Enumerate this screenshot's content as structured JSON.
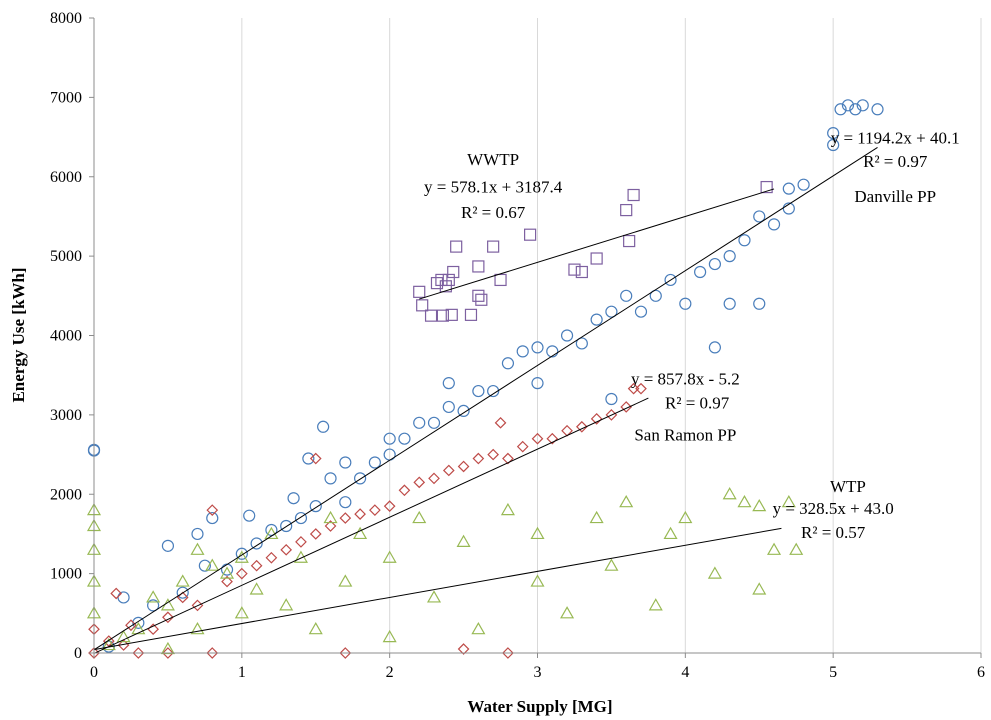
{
  "chart_data": {
    "type": "scatter",
    "title": "",
    "xlabel": "Water Supply [MG]",
    "ylabel": "Energy Use [kWh]",
    "xlim": [
      0,
      6
    ],
    "ylim": [
      0,
      8000
    ],
    "x_ticks": [
      0,
      1,
      2,
      3,
      4,
      5,
      6
    ],
    "y_ticks": [
      0,
      1000,
      2000,
      3000,
      4000,
      5000,
      6000,
      7000,
      8000
    ],
    "grid": "vertical",
    "legend": "none",
    "series": [
      {
        "name": "Danville PP",
        "marker": "circle",
        "color": "#4a7ebb",
        "slope": 1194.2,
        "intercept": 40.1,
        "fit_x": [
          0,
          5.3
        ],
        "equation": "y = 1194.2x + 40.1",
        "r2": "R² = 0.97",
        "points": [
          [
            0,
            2550
          ],
          [
            0,
            2560
          ],
          [
            0.1,
            80
          ],
          [
            0.2,
            700
          ],
          [
            0.3,
            380
          ],
          [
            0.4,
            600
          ],
          [
            0.5,
            1350
          ],
          [
            0.6,
            760
          ],
          [
            0.7,
            1500
          ],
          [
            0.75,
            1100
          ],
          [
            0.8,
            1700
          ],
          [
            0.9,
            1050
          ],
          [
            1.0,
            1250
          ],
          [
            1.05,
            1730
          ],
          [
            1.1,
            1380
          ],
          [
            1.2,
            1550
          ],
          [
            1.3,
            1600
          ],
          [
            1.35,
            1950
          ],
          [
            1.4,
            1700
          ],
          [
            1.45,
            2450
          ],
          [
            1.5,
            1850
          ],
          [
            1.55,
            2850
          ],
          [
            1.6,
            2200
          ],
          [
            1.7,
            1900
          ],
          [
            1.7,
            2400
          ],
          [
            1.8,
            2200
          ],
          [
            1.9,
            2400
          ],
          [
            2.0,
            2500
          ],
          [
            2.0,
            2700
          ],
          [
            2.1,
            2700
          ],
          [
            2.2,
            2900
          ],
          [
            2.3,
            2900
          ],
          [
            2.4,
            3100
          ],
          [
            2.4,
            3400
          ],
          [
            2.5,
            3050
          ],
          [
            2.6,
            3300
          ],
          [
            2.7,
            3300
          ],
          [
            2.8,
            3650
          ],
          [
            2.9,
            3800
          ],
          [
            3.0,
            3400
          ],
          [
            3.0,
            3850
          ],
          [
            3.1,
            3800
          ],
          [
            3.2,
            4000
          ],
          [
            3.3,
            3900
          ],
          [
            3.4,
            4200
          ],
          [
            3.5,
            3200
          ],
          [
            3.5,
            4300
          ],
          [
            3.6,
            4500
          ],
          [
            3.7,
            4300
          ],
          [
            3.8,
            4500
          ],
          [
            3.9,
            4700
          ],
          [
            4.0,
            4400
          ],
          [
            4.1,
            4800
          ],
          [
            4.2,
            3850
          ],
          [
            4.2,
            4900
          ],
          [
            4.3,
            5000
          ],
          [
            4.3,
            4400
          ],
          [
            4.4,
            5200
          ],
          [
            4.5,
            5500
          ],
          [
            4.5,
            4400
          ],
          [
            4.6,
            5400
          ],
          [
            4.7,
            5850
          ],
          [
            4.7,
            5600
          ],
          [
            4.8,
            5900
          ],
          [
            5.0,
            6400
          ],
          [
            5.0,
            6550
          ],
          [
            5.05,
            6850
          ],
          [
            5.1,
            6900
          ],
          [
            5.15,
            6850
          ],
          [
            5.2,
            6900
          ],
          [
            5.3,
            6850
          ]
        ]
      },
      {
        "name": "San Ramon PP",
        "marker": "diamond",
        "color": "#be4b48",
        "slope": 857.8,
        "intercept": -5.2,
        "fit_x": [
          0,
          3.75
        ],
        "equation": "y = 857.8x - 5.2",
        "r2": "R² = 0.97",
        "points": [
          [
            0,
            0
          ],
          [
            0,
            300
          ],
          [
            0.1,
            150
          ],
          [
            0.15,
            750
          ],
          [
            0.2,
            100
          ],
          [
            0.25,
            350
          ],
          [
            0.3,
            0
          ],
          [
            0.4,
            300
          ],
          [
            0.5,
            450
          ],
          [
            0.5,
            0
          ],
          [
            0.6,
            700
          ],
          [
            0.7,
            600
          ],
          [
            0.8,
            1800
          ],
          [
            0.8,
            0
          ],
          [
            0.9,
            900
          ],
          [
            1.0,
            1000
          ],
          [
            1.1,
            1100
          ],
          [
            1.2,
            1200
          ],
          [
            1.3,
            1300
          ],
          [
            1.4,
            1400
          ],
          [
            1.5,
            1500
          ],
          [
            1.5,
            2450
          ],
          [
            1.6,
            1600
          ],
          [
            1.7,
            1700
          ],
          [
            1.7,
            0
          ],
          [
            1.8,
            1750
          ],
          [
            1.9,
            1800
          ],
          [
            2.0,
            1850
          ],
          [
            2.1,
            2050
          ],
          [
            2.2,
            2150
          ],
          [
            2.3,
            2200
          ],
          [
            2.4,
            2300
          ],
          [
            2.5,
            2350
          ],
          [
            2.5,
            50
          ],
          [
            2.6,
            2450
          ],
          [
            2.7,
            2500
          ],
          [
            2.75,
            2900
          ],
          [
            2.8,
            2450
          ],
          [
            2.8,
            0
          ],
          [
            2.9,
            2600
          ],
          [
            3.0,
            2700
          ],
          [
            3.1,
            2700
          ],
          [
            3.2,
            2800
          ],
          [
            3.3,
            2850
          ],
          [
            3.4,
            2950
          ],
          [
            3.5,
            3000
          ],
          [
            3.6,
            3100
          ],
          [
            3.65,
            3330
          ],
          [
            3.7,
            3330
          ]
        ]
      },
      {
        "name": "WTP",
        "marker": "triangle",
        "color": "#98b954",
        "slope": 328.5,
        "intercept": 43.0,
        "fit_x": [
          0,
          4.65
        ],
        "equation": "y = 328.5x + 43.0",
        "r2": "R² = 0.57",
        "points": [
          [
            0,
            1800
          ],
          [
            0,
            1600
          ],
          [
            0,
            1300
          ],
          [
            0,
            900
          ],
          [
            0,
            500
          ],
          [
            0.1,
            100
          ],
          [
            0.2,
            200
          ],
          [
            0.3,
            300
          ],
          [
            0.4,
            700
          ],
          [
            0.5,
            50
          ],
          [
            0.5,
            600
          ],
          [
            0.6,
            900
          ],
          [
            0.7,
            300
          ],
          [
            0.7,
            1300
          ],
          [
            0.8,
            1100
          ],
          [
            0.9,
            1000
          ],
          [
            1.0,
            500
          ],
          [
            1.0,
            1200
          ],
          [
            1.1,
            800
          ],
          [
            1.2,
            1500
          ],
          [
            1.3,
            600
          ],
          [
            1.4,
            1200
          ],
          [
            1.5,
            300
          ],
          [
            1.6,
            1700
          ],
          [
            1.7,
            900
          ],
          [
            1.8,
            1500
          ],
          [
            2.0,
            200
          ],
          [
            2.0,
            1200
          ],
          [
            2.2,
            1700
          ],
          [
            2.3,
            700
          ],
          [
            2.5,
            1400
          ],
          [
            2.6,
            300
          ],
          [
            2.8,
            1800
          ],
          [
            3.0,
            900
          ],
          [
            3.0,
            1500
          ],
          [
            3.2,
            500
          ],
          [
            3.4,
            1700
          ],
          [
            3.5,
            1100
          ],
          [
            3.6,
            1900
          ],
          [
            3.8,
            600
          ],
          [
            3.9,
            1500
          ],
          [
            4.0,
            1700
          ],
          [
            4.2,
            1000
          ],
          [
            4.3,
            2000
          ],
          [
            4.4,
            1900
          ],
          [
            4.5,
            1850
          ],
          [
            4.5,
            800
          ],
          [
            4.6,
            1300
          ],
          [
            4.7,
            1900
          ],
          [
            4.75,
            1300
          ]
        ]
      },
      {
        "name": "WWTP",
        "marker": "square",
        "color": "#7d60a0",
        "slope": 578.1,
        "intercept": 3187.4,
        "fit_x": [
          2.2,
          4.6
        ],
        "equation": "y = 578.1x + 3187.4",
        "r2": "R² = 0.67",
        "points": [
          [
            2.2,
            4550
          ],
          [
            2.22,
            4380
          ],
          [
            2.28,
            4250
          ],
          [
            2.32,
            4660
          ],
          [
            2.35,
            4700
          ],
          [
            2.36,
            4250
          ],
          [
            2.38,
            4620
          ],
          [
            2.4,
            4700
          ],
          [
            2.42,
            4260
          ],
          [
            2.43,
            4800
          ],
          [
            2.45,
            5120
          ],
          [
            2.55,
            4260
          ],
          [
            2.6,
            4870
          ],
          [
            2.6,
            4500
          ],
          [
            2.62,
            4450
          ],
          [
            2.7,
            5120
          ],
          [
            2.75,
            4700
          ],
          [
            2.95,
            5270
          ],
          [
            3.25,
            4830
          ],
          [
            3.3,
            4800
          ],
          [
            3.4,
            4970
          ],
          [
            3.6,
            5580
          ],
          [
            3.62,
            5190
          ],
          [
            3.65,
            5770
          ],
          [
            4.55,
            5870
          ]
        ]
      }
    ],
    "annotations": [
      {
        "text": "WWTP",
        "x": 2.7,
        "y": 6150
      },
      {
        "text": "y = 578.1x + 3187.4",
        "x": 2.7,
        "y": 5800
      },
      {
        "text": "R² = 0.67",
        "x": 2.7,
        "y": 5480
      },
      {
        "text": "y = 1194.2x + 40.1",
        "x": 5.42,
        "y": 6420
      },
      {
        "text": "R² = 0.97",
        "x": 5.42,
        "y": 6120
      },
      {
        "text": "Danville PP",
        "x": 5.42,
        "y": 5680
      },
      {
        "text": "y = 857.8x - 5.2",
        "x": 4.0,
        "y": 3380
      },
      {
        "text": "R² = 0.97",
        "x": 4.08,
        "y": 3080
      },
      {
        "text": "San Ramon PP",
        "x": 4.0,
        "y": 2680
      },
      {
        "text": "WTP",
        "x": 5.1,
        "y": 2030
      },
      {
        "text": "y = 328.5x + 43.0",
        "x": 5.0,
        "y": 1750
      },
      {
        "text": "R² = 0.57",
        "x": 5.0,
        "y": 1450
      }
    ]
  }
}
